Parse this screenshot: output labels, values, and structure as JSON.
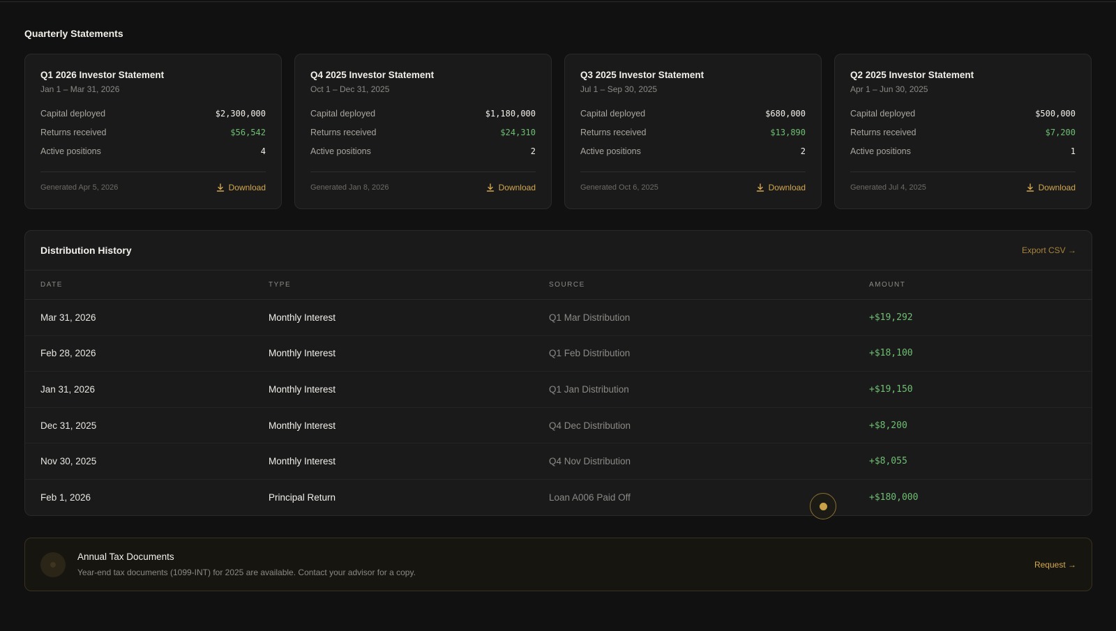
{
  "statements": {
    "title": "Quarterly Statements",
    "labels": {
      "capital": "Capital deployed",
      "returns": "Returns received",
      "positions": "Active positions"
    },
    "download_label": "Download",
    "cards": [
      {
        "title": "Q1 2026 Investor Statement",
        "period": "Jan 1 – Mar 31, 2026",
        "capital": "$2,300,000",
        "returns": "$56,542",
        "positions": "4",
        "generated": "Generated Apr 5, 2026"
      },
      {
        "title": "Q4 2025 Investor Statement",
        "period": "Oct 1 – Dec 31, 2025",
        "capital": "$1,180,000",
        "returns": "$24,310",
        "positions": "2",
        "generated": "Generated Jan 8, 2026"
      },
      {
        "title": "Q3 2025 Investor Statement",
        "period": "Jul 1 – Sep 30, 2025",
        "capital": "$680,000",
        "returns": "$13,890",
        "positions": "2",
        "generated": "Generated Oct 6, 2025"
      },
      {
        "title": "Q2 2025 Investor Statement",
        "period": "Apr 1 – Jun 30, 2025",
        "capital": "$500,000",
        "returns": "$7,200",
        "positions": "1",
        "generated": "Generated Jul 4, 2025"
      }
    ]
  },
  "history": {
    "title": "Distribution History",
    "export_label": "Export CSV →",
    "columns": [
      "DATE",
      "TYPE",
      "SOURCE",
      "AMOUNT"
    ],
    "rows": [
      {
        "date": "Mar 31, 2026",
        "type": "Monthly Interest",
        "source": "Q1 Mar Distribution",
        "amount": "+$19,292"
      },
      {
        "date": "Feb 28, 2026",
        "type": "Monthly Interest",
        "source": "Q1 Feb Distribution",
        "amount": "+$18,100"
      },
      {
        "date": "Jan 31, 2026",
        "type": "Monthly Interest",
        "source": "Q1 Jan Distribution",
        "amount": "+$19,150"
      },
      {
        "date": "Dec 31, 2025",
        "type": "Monthly Interest",
        "source": "Q4 Dec Distribution",
        "amount": "+$8,200"
      },
      {
        "date": "Nov 30, 2025",
        "type": "Monthly Interest",
        "source": "Q4 Nov Distribution",
        "amount": "+$8,055"
      },
      {
        "date": "Feb 1, 2026",
        "type": "Principal Return",
        "source": "Loan A006 Paid Off",
        "amount": "+$180,000"
      }
    ]
  },
  "tax": {
    "title": "Annual Tax Documents",
    "description": "Year-end tax documents (1099-INT) for 2025 are available. Contact your advisor for a copy.",
    "request_label": "Request →"
  },
  "colors": {
    "accent_gold": "#d4a94f",
    "positive_green": "#6fbf73",
    "background": "#111111",
    "card": "#1a1a1a"
  }
}
